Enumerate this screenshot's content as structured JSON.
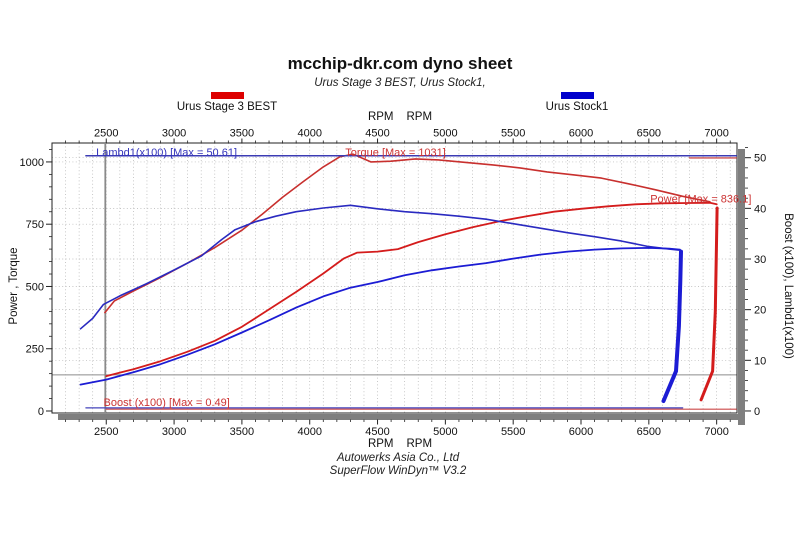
{
  "title": "mcchip-dkr.com dyno sheet",
  "subtitle": "Urus Stage 3 BEST, Urus Stock1,",
  "legend": [
    {
      "label": "Urus Stage 3 BEST",
      "color": "#dd0000"
    },
    {
      "label": "Urus Stock1",
      "color": "#0000cc"
    }
  ],
  "axis_captions": {
    "left": "Power , Torque",
    "right": "Boost (x100), Lambd1(x100)",
    "rpm": "RPM"
  },
  "footer": {
    "line1": "Autowerks Asia Co., Ltd",
    "line2": "SuperFlow WinDyn™ V3.2"
  },
  "chart_data": {
    "type": "line",
    "title": "mcchip-dkr.com dyno sheet",
    "x_axis": {
      "label": "RPM",
      "min": 2100,
      "max": 7150,
      "ticks": [
        2500,
        3000,
        3500,
        4000,
        4500,
        5000,
        5500,
        6000,
        6500,
        7000
      ],
      "minor_step": 100
    },
    "y_left": {
      "label": "Power , Torque",
      "min": -8,
      "max": 1076,
      "ticks": [
        0,
        250,
        500,
        750,
        1000
      ],
      "minor_step": 50
    },
    "y_right": {
      "label": "Boost (x100), Lambd1(x100)",
      "min": -0.4,
      "max": 52.9,
      "ticks": [
        0,
        10,
        20,
        30,
        40,
        50
      ],
      "minor_step": 2
    },
    "grid": {
      "color": "#b2b2b2",
      "style": "dotted"
    },
    "cursor_rpm": 2493,
    "reference_line": {
      "axis": "left",
      "value": 145,
      "color": "#8c8c8c"
    },
    "series": [
      {
        "name": "stage3-torque",
        "run": "Urus Stage 3 BEST",
        "channel": "Torque",
        "axis": "left",
        "color": "#c8302e",
        "width": 1.6,
        "points": [
          [
            2490,
            395
          ],
          [
            2560,
            442
          ],
          [
            2700,
            482
          ],
          [
            2900,
            536
          ],
          [
            3100,
            594
          ],
          [
            3300,
            656
          ],
          [
            3500,
            726
          ],
          [
            3650,
            790
          ],
          [
            3800,
            858
          ],
          [
            3950,
            920
          ],
          [
            4100,
            980
          ],
          [
            4220,
            1020
          ],
          [
            4320,
            1031
          ],
          [
            4450,
            1000
          ],
          [
            4600,
            1003
          ],
          [
            4780,
            1012
          ],
          [
            4950,
            1008
          ],
          [
            5150,
            998
          ],
          [
            5350,
            988
          ],
          [
            5550,
            976
          ],
          [
            5750,
            960
          ],
          [
            5950,
            948
          ],
          [
            6150,
            935
          ],
          [
            6350,
            912
          ],
          [
            6550,
            888
          ],
          [
            6750,
            862
          ],
          [
            6950,
            840
          ]
        ]
      },
      {
        "name": "stage3-power",
        "run": "Urus Stage 3 BEST",
        "channel": "Power",
        "axis": "left",
        "color": "#d41c1c",
        "width": 1.8,
        "points": [
          [
            2500,
            140
          ],
          [
            2700,
            168
          ],
          [
            2900,
            200
          ],
          [
            3100,
            238
          ],
          [
            3300,
            282
          ],
          [
            3500,
            338
          ],
          [
            3700,
            408
          ],
          [
            3900,
            478
          ],
          [
            4100,
            552
          ],
          [
            4250,
            612
          ],
          [
            4350,
            636
          ],
          [
            4500,
            640
          ],
          [
            4650,
            650
          ],
          [
            4800,
            678
          ],
          [
            5000,
            710
          ],
          [
            5200,
            738
          ],
          [
            5400,
            762
          ],
          [
            5600,
            782
          ],
          [
            5800,
            800
          ],
          [
            6000,
            812
          ],
          [
            6200,
            822
          ],
          [
            6400,
            830
          ],
          [
            6600,
            834
          ],
          [
            6800,
            835
          ],
          [
            6950,
            836
          ],
          [
            7000,
            830
          ]
        ]
      },
      {
        "name": "stage3-power-cutoff",
        "run": "Urus Stage 3 BEST",
        "channel": "Power run end",
        "axis": "left",
        "color": "#d41c1c",
        "width": 3,
        "points": [
          [
            7003,
            815
          ],
          [
            6998,
            650
          ],
          [
            6990,
            400
          ],
          [
            6970,
            160
          ],
          [
            6885,
            45
          ]
        ]
      },
      {
        "name": "stock-torque",
        "run": "Urus Stock1",
        "channel": "Torque",
        "axis": "left",
        "color": "#2a2ac0",
        "width": 1.6,
        "points": [
          [
            2310,
            330
          ],
          [
            2400,
            372
          ],
          [
            2480,
            428
          ],
          [
            2600,
            462
          ],
          [
            2800,
            512
          ],
          [
            3000,
            566
          ],
          [
            3200,
            622
          ],
          [
            3350,
            688
          ],
          [
            3450,
            728
          ],
          [
            3600,
            760
          ],
          [
            3750,
            782
          ],
          [
            3900,
            800
          ],
          [
            4100,
            815
          ],
          [
            4300,
            826
          ],
          [
            4500,
            812
          ],
          [
            4700,
            800
          ],
          [
            4900,
            792
          ],
          [
            5100,
            782
          ],
          [
            5300,
            770
          ],
          [
            5500,
            752
          ],
          [
            5700,
            734
          ],
          [
            5900,
            716
          ],
          [
            6100,
            700
          ],
          [
            6300,
            682
          ],
          [
            6500,
            660
          ],
          [
            6650,
            650
          ],
          [
            6720,
            646
          ]
        ]
      },
      {
        "name": "stock-power",
        "run": "Urus Stock1",
        "channel": "Power",
        "axis": "left",
        "color": "#1c1cd4",
        "width": 1.8,
        "points": [
          [
            2310,
            106
          ],
          [
            2500,
            126
          ],
          [
            2700,
            156
          ],
          [
            2900,
            188
          ],
          [
            3100,
            226
          ],
          [
            3300,
            268
          ],
          [
            3500,
            315
          ],
          [
            3700,
            364
          ],
          [
            3900,
            415
          ],
          [
            4100,
            460
          ],
          [
            4300,
            495
          ],
          [
            4500,
            518
          ],
          [
            4700,
            545
          ],
          [
            4900,
            565
          ],
          [
            5100,
            580
          ],
          [
            5300,
            594
          ],
          [
            5500,
            612
          ],
          [
            5700,
            628
          ],
          [
            5900,
            640
          ],
          [
            6100,
            648
          ],
          [
            6300,
            653
          ],
          [
            6500,
            655
          ],
          [
            6650,
            652
          ],
          [
            6730,
            648
          ]
        ]
      },
      {
        "name": "stock-power-cutoff",
        "run": "Urus Stock1",
        "channel": "Power run end",
        "axis": "left",
        "color": "#1c1cd4",
        "width": 4,
        "points": [
          [
            6737,
            640
          ],
          [
            6732,
            520
          ],
          [
            6722,
            340
          ],
          [
            6700,
            160
          ],
          [
            6608,
            40
          ]
        ]
      },
      {
        "name": "lambda-stage3",
        "run": "Urus Stage 3 BEST",
        "channel": "Lambd1(x100)",
        "axis": "right",
        "color": "#cc5050",
        "width": 1.4,
        "points": [
          [
            6800,
            49.95
          ],
          [
            7145,
            49.95
          ]
        ]
      },
      {
        "name": "lambda-stock",
        "run": "Urus Stock1",
        "channel": "Lambd1(x100)",
        "axis": "right",
        "color": "#3c3cb4",
        "width": 1.5,
        "points": [
          [
            2350,
            50.4
          ],
          [
            7145,
            50.4
          ]
        ]
      },
      {
        "name": "boost-stage3",
        "run": "Urus Stage 3 BEST",
        "channel": "Boost (x100)",
        "axis": "right",
        "color": "#cc4848",
        "width": 1.2,
        "points": [
          [
            2500,
            0.35
          ],
          [
            7145,
            0.35
          ]
        ]
      },
      {
        "name": "boost-stock",
        "run": "Urus Stock1",
        "channel": "Boost (x100)",
        "axis": "right",
        "color": "#4444bb",
        "width": 1.2,
        "points": [
          [
            2350,
            0.6
          ],
          [
            6750,
            0.6
          ]
        ]
      }
    ],
    "annotations": [
      {
        "name": "lambda-max-label",
        "text": "Lambd1(x100) [Max = 50.61]",
        "rpm": 2425,
        "axis": "right",
        "value": 50.6,
        "dy": 1.5,
        "color": "#3333bb"
      },
      {
        "name": "torque-max-label",
        "text": "Torque [Max = 1031]",
        "rpm": 4262,
        "axis": "right",
        "value": 50.6,
        "dy": 1.5,
        "color": "#cc3333"
      },
      {
        "name": "power-max-label",
        "text": "Power  [Max = 836.1]",
        "rpm": 6510,
        "axis": "left",
        "value": 838,
        "dy": 0,
        "color": "#cc3333"
      },
      {
        "name": "boost-max-label",
        "text": "Boost (x100) [Max = 0.49]",
        "rpm": 2480,
        "axis": "right",
        "value": 0.55,
        "dy": -2,
        "color": "#cc3333"
      }
    ],
    "max_values": {
      "torque": 1031,
      "power": 836.1,
      "lambda_x100": 50.61,
      "boost_x100": 0.49
    }
  }
}
